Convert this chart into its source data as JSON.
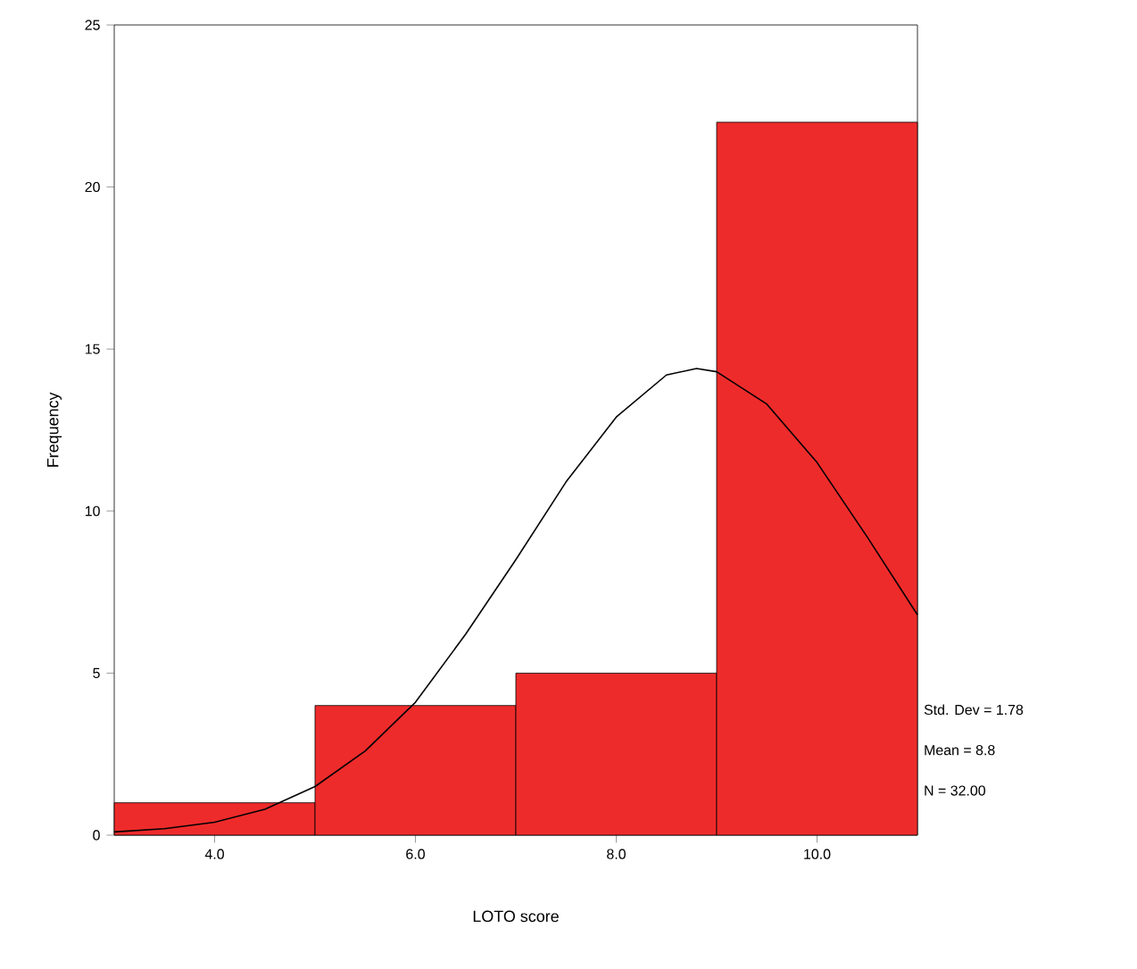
{
  "chart_data": {
    "type": "histogram",
    "xlabel": "LOTO score",
    "ylabel": "Frequency",
    "bins": [
      3,
      5,
      7,
      9,
      11
    ],
    "values": [
      1,
      4,
      5,
      22
    ],
    "color": "#ee2b2b",
    "series": [
      {
        "type": "line",
        "color": "#000000",
        "x": [
          3,
          3.5,
          4,
          4.5,
          5,
          5.5,
          6,
          6.5,
          7,
          7.5,
          8,
          8.5,
          8.8,
          9,
          9.5,
          10,
          10.5,
          11
        ],
        "values": [
          0.1,
          0.2,
          0.4,
          0.8,
          1.5,
          2.6,
          4.1,
          6.2,
          8.5,
          10.9,
          12.9,
          14.2,
          14.4,
          14.3,
          13.3,
          11.5,
          9.2,
          6.8
        ]
      }
    ],
    "xlim": [
      3,
      11
    ],
    "ylim": [
      0,
      25
    ],
    "xticks": [
      {
        "value": 4,
        "label": "4.0"
      },
      {
        "value": 6,
        "label": "6.0"
      },
      {
        "value": 8,
        "label": "8.0"
      },
      {
        "value": 10,
        "label": "10.0"
      }
    ],
    "yticks": [
      0,
      5,
      10,
      15,
      20,
      25
    ],
    "grid": false,
    "annotations": [
      "Std. Dev = 1.78",
      "Mean = 8.8",
      "N = 32.00"
    ]
  }
}
